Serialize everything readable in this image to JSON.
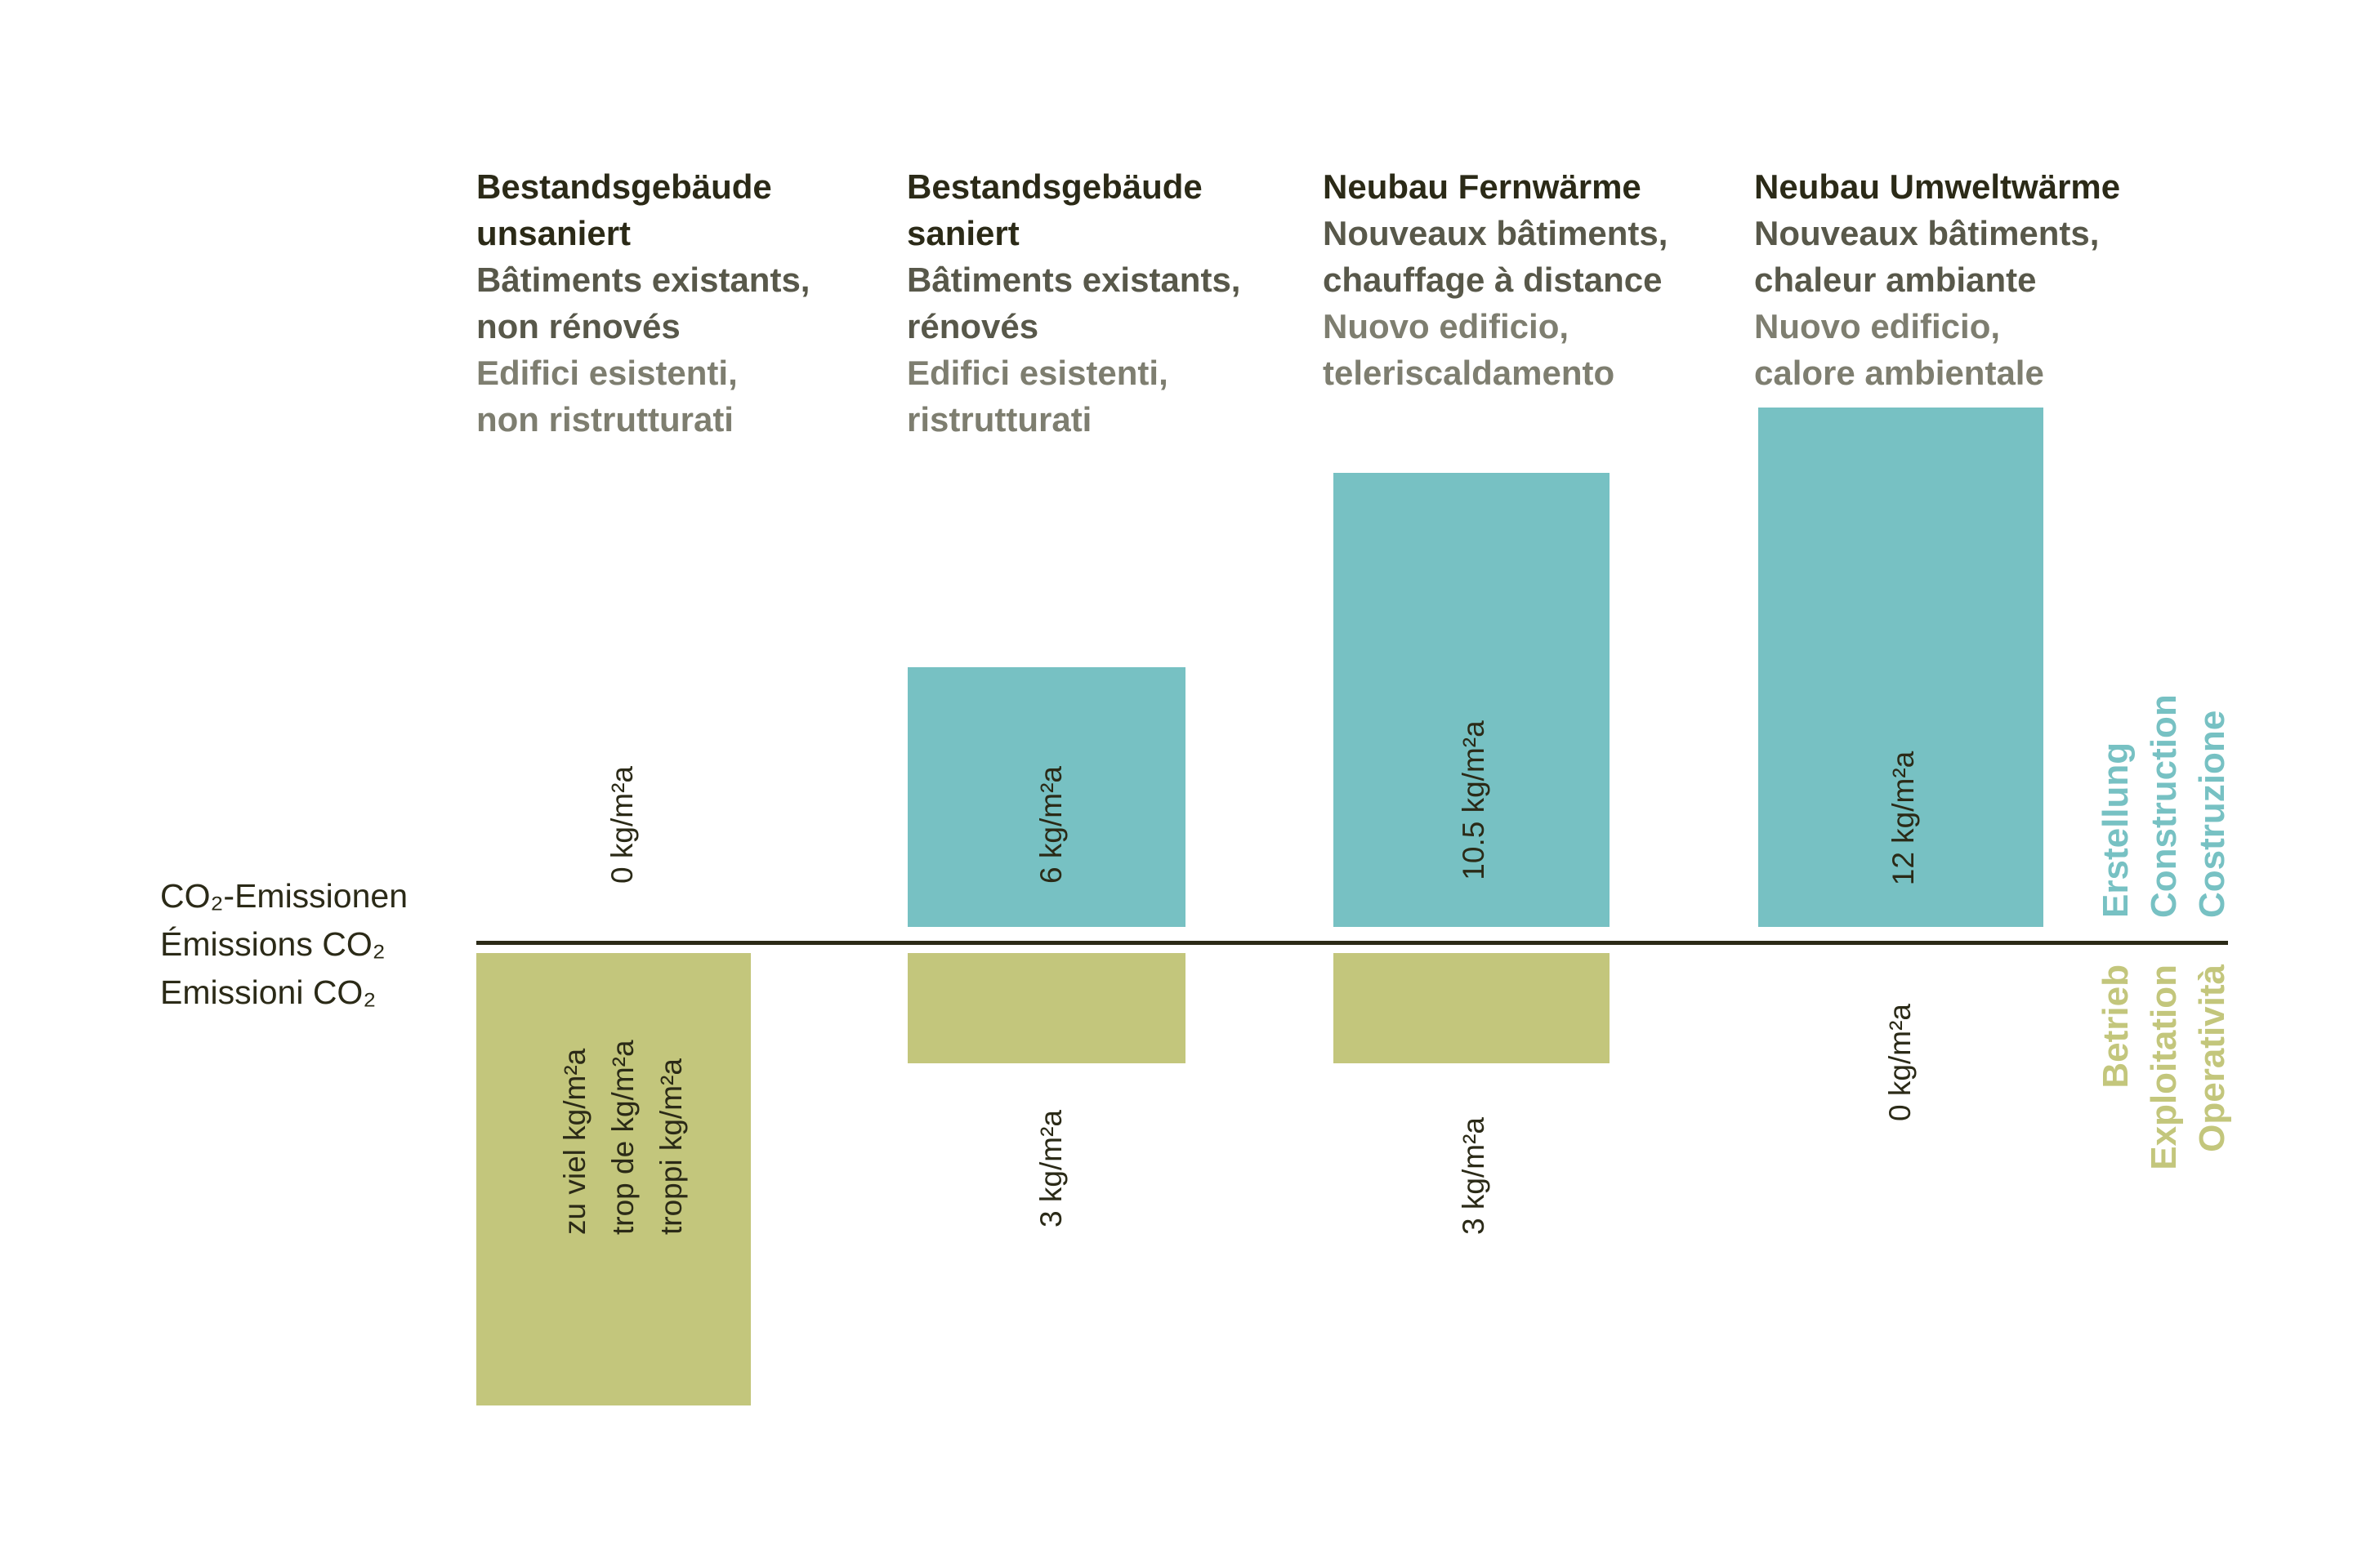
{
  "chart_data": {
    "type": "bar",
    "ylabel": [
      "CO₂-Emissionen",
      "Émissions CO₂",
      "Emissioni CO₂"
    ],
    "categories": [
      {
        "de": "Bestandsgebäude\nunsaniert",
        "fr": "Bâtiments existants,\nnon rénovés",
        "it": "Edifici esistenti,\nnon ristrutturati"
      },
      {
        "de": "Bestandsgebäude\nsaniert",
        "fr": "Bâtiments existants,\nrénovés",
        "it": "Edifici esistenti,\nristrutturati"
      },
      {
        "de": "Neubau Fernwärme",
        "fr": "Nouveaux bâtiments,\nchauffage à distance",
        "it": "Nuovo edificio,\nteleriscaldamento"
      },
      {
        "de": "Neubau Umweltwärme",
        "fr": "Nouveaux bâtiments,\nchaleur ambiante",
        "it": "Nuovo edificio,\ncalore ambientale"
      }
    ],
    "series": [
      {
        "name": [
          "Erstellung",
          "Construction",
          "Costruzione"
        ],
        "direction": "up",
        "color": "#77c1c3",
        "values": [
          0,
          6,
          10.5,
          12
        ],
        "labels": [
          "0 kg/m²a",
          "6 kg/m²a",
          "10.5 kg/m²a",
          "12 kg/m²a"
        ]
      },
      {
        "name": [
          "Betrieb",
          "Exploitation",
          "Operatività"
        ],
        "direction": "down",
        "color": "#c3c67c",
        "values": [
          null,
          3,
          3,
          0
        ],
        "labels": [
          [
            "zu viel kg/m²a",
            "trop de kg/m²a",
            "troppi kg/m²a"
          ],
          "3 kg/m²a",
          "3 kg/m²a",
          "0 kg/m²a"
        ]
      }
    ],
    "colors": {
      "text": "#2b2a17",
      "construction": "#77c1c3",
      "operation": "#c3c67c"
    }
  }
}
